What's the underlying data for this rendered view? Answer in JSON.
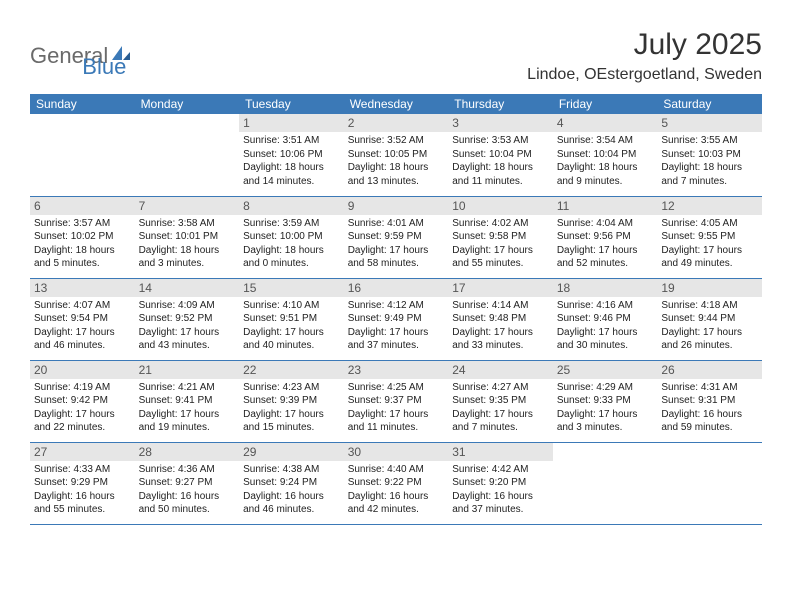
{
  "logo": {
    "text_a": "General",
    "text_b": "Blue"
  },
  "title": "July 2025",
  "location": "Lindoe, OEstergoetland, Sweden",
  "colors": {
    "header_bg": "#3b79b7",
    "header_text": "#ffffff",
    "daynum_bg": "#e6e6e6",
    "body_text": "#222222",
    "page_bg": "#ffffff",
    "logo_gray": "#6a6a6a",
    "logo_blue": "#3b79b7"
  },
  "layout": {
    "columns": 7,
    "rows": 5,
    "first_day_column_index": 2,
    "days_in_month": 31
  },
  "day_headers": [
    "Sunday",
    "Monday",
    "Tuesday",
    "Wednesday",
    "Thursday",
    "Friday",
    "Saturday"
  ],
  "days": [
    {
      "n": 1,
      "sunrise": "3:51 AM",
      "sunset": "10:06 PM",
      "daylight": "18 hours and 14 minutes."
    },
    {
      "n": 2,
      "sunrise": "3:52 AM",
      "sunset": "10:05 PM",
      "daylight": "18 hours and 13 minutes."
    },
    {
      "n": 3,
      "sunrise": "3:53 AM",
      "sunset": "10:04 PM",
      "daylight": "18 hours and 11 minutes."
    },
    {
      "n": 4,
      "sunrise": "3:54 AM",
      "sunset": "10:04 PM",
      "daylight": "18 hours and 9 minutes."
    },
    {
      "n": 5,
      "sunrise": "3:55 AM",
      "sunset": "10:03 PM",
      "daylight": "18 hours and 7 minutes."
    },
    {
      "n": 6,
      "sunrise": "3:57 AM",
      "sunset": "10:02 PM",
      "daylight": "18 hours and 5 minutes."
    },
    {
      "n": 7,
      "sunrise": "3:58 AM",
      "sunset": "10:01 PM",
      "daylight": "18 hours and 3 minutes."
    },
    {
      "n": 8,
      "sunrise": "3:59 AM",
      "sunset": "10:00 PM",
      "daylight": "18 hours and 0 minutes."
    },
    {
      "n": 9,
      "sunrise": "4:01 AM",
      "sunset": "9:59 PM",
      "daylight": "17 hours and 58 minutes."
    },
    {
      "n": 10,
      "sunrise": "4:02 AM",
      "sunset": "9:58 PM",
      "daylight": "17 hours and 55 minutes."
    },
    {
      "n": 11,
      "sunrise": "4:04 AM",
      "sunset": "9:56 PM",
      "daylight": "17 hours and 52 minutes."
    },
    {
      "n": 12,
      "sunrise": "4:05 AM",
      "sunset": "9:55 PM",
      "daylight": "17 hours and 49 minutes."
    },
    {
      "n": 13,
      "sunrise": "4:07 AM",
      "sunset": "9:54 PM",
      "daylight": "17 hours and 46 minutes."
    },
    {
      "n": 14,
      "sunrise": "4:09 AM",
      "sunset": "9:52 PM",
      "daylight": "17 hours and 43 minutes."
    },
    {
      "n": 15,
      "sunrise": "4:10 AM",
      "sunset": "9:51 PM",
      "daylight": "17 hours and 40 minutes."
    },
    {
      "n": 16,
      "sunrise": "4:12 AM",
      "sunset": "9:49 PM",
      "daylight": "17 hours and 37 minutes."
    },
    {
      "n": 17,
      "sunrise": "4:14 AM",
      "sunset": "9:48 PM",
      "daylight": "17 hours and 33 minutes."
    },
    {
      "n": 18,
      "sunrise": "4:16 AM",
      "sunset": "9:46 PM",
      "daylight": "17 hours and 30 minutes."
    },
    {
      "n": 19,
      "sunrise": "4:18 AM",
      "sunset": "9:44 PM",
      "daylight": "17 hours and 26 minutes."
    },
    {
      "n": 20,
      "sunrise": "4:19 AM",
      "sunset": "9:42 PM",
      "daylight": "17 hours and 22 minutes."
    },
    {
      "n": 21,
      "sunrise": "4:21 AM",
      "sunset": "9:41 PM",
      "daylight": "17 hours and 19 minutes."
    },
    {
      "n": 22,
      "sunrise": "4:23 AM",
      "sunset": "9:39 PM",
      "daylight": "17 hours and 15 minutes."
    },
    {
      "n": 23,
      "sunrise": "4:25 AM",
      "sunset": "9:37 PM",
      "daylight": "17 hours and 11 minutes."
    },
    {
      "n": 24,
      "sunrise": "4:27 AM",
      "sunset": "9:35 PM",
      "daylight": "17 hours and 7 minutes."
    },
    {
      "n": 25,
      "sunrise": "4:29 AM",
      "sunset": "9:33 PM",
      "daylight": "17 hours and 3 minutes."
    },
    {
      "n": 26,
      "sunrise": "4:31 AM",
      "sunset": "9:31 PM",
      "daylight": "16 hours and 59 minutes."
    },
    {
      "n": 27,
      "sunrise": "4:33 AM",
      "sunset": "9:29 PM",
      "daylight": "16 hours and 55 minutes."
    },
    {
      "n": 28,
      "sunrise": "4:36 AM",
      "sunset": "9:27 PM",
      "daylight": "16 hours and 50 minutes."
    },
    {
      "n": 29,
      "sunrise": "4:38 AM",
      "sunset": "9:24 PM",
      "daylight": "16 hours and 46 minutes."
    },
    {
      "n": 30,
      "sunrise": "4:40 AM",
      "sunset": "9:22 PM",
      "daylight": "16 hours and 42 minutes."
    },
    {
      "n": 31,
      "sunrise": "4:42 AM",
      "sunset": "9:20 PM",
      "daylight": "16 hours and 37 minutes."
    }
  ],
  "labels": {
    "sunrise": "Sunrise:",
    "sunset": "Sunset:",
    "daylight": "Daylight:"
  }
}
